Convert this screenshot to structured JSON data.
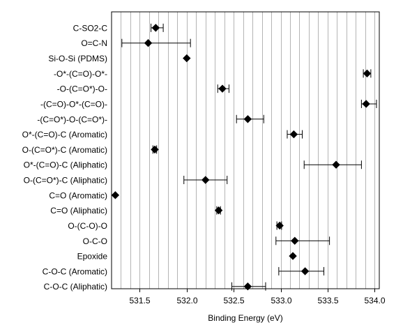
{
  "chart_data": {
    "type": "scatter",
    "xlabel": "Binding Energy (eV)",
    "xlim": [
      531.2,
      534.05
    ],
    "xticks": [
      531.5,
      532.0,
      532.5,
      533.0,
      533.5,
      534.0
    ],
    "xtick_labels": [
      "531.5",
      "532.0",
      "532.5",
      "533.0",
      "533.5",
      "534.0"
    ],
    "grid_step": 0.1,
    "grid": true,
    "marker": "diamond",
    "marker_color": "#000000",
    "error_bars": true,
    "categories": [
      "C-SO2-C",
      "O=C-N",
      "Si-O-Si (PDMS)",
      "-O*-(C=O)-O*-",
      "-O-(C=O*)-O-",
      "-(C=O)-O*-(C=O)-",
      "-(C=O*)-O-(C=O*)-",
      "O*-(C=O)-C (Aromatic)",
      "O-(C=O*)-C (Aromatic)",
      "O*-(C=O)-C (Aliphatic)",
      "O-(C=O*)-C (Aliphatic)",
      "C=O (Aromatic)",
      "C=O (Aliphatic)",
      "O-(C-O)-O",
      "O-C-O",
      "Epoxide",
      "C-O-C (Aromatic)",
      "C-O-C (Aliphatic)"
    ],
    "values": [
      531.67,
      531.59,
      532.0,
      533.92,
      532.38,
      533.91,
      532.65,
      533.14,
      531.66,
      533.59,
      532.2,
      531.24,
      532.34,
      532.99,
      533.15,
      533.13,
      533.26,
      532.65
    ],
    "err_low": [
      531.62,
      531.31,
      null,
      533.88,
      532.33,
      533.86,
      532.53,
      533.07,
      531.64,
      533.25,
      531.97,
      null,
      532.32,
      532.96,
      532.95,
      null,
      532.98,
      532.48
    ],
    "err_high": [
      531.75,
      532.04,
      null,
      533.96,
      532.45,
      534.02,
      532.82,
      533.23,
      531.68,
      533.86,
      532.43,
      null,
      532.36,
      533.01,
      533.52,
      null,
      533.46,
      532.84
    ]
  }
}
